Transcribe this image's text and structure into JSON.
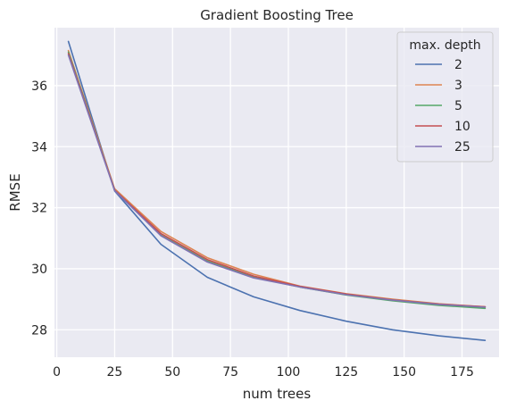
{
  "chart_data": {
    "type": "line",
    "title": "Gradient Boosting Tree",
    "xlabel": "num trees",
    "ylabel": "RMSE",
    "xlim": [
      -1,
      191
    ],
    "ylim": [
      27.1,
      37.9
    ],
    "xticks": [
      0,
      25,
      50,
      75,
      100,
      125,
      150,
      175
    ],
    "yticks": [
      28,
      30,
      32,
      34,
      36
    ],
    "grid": true,
    "legend": {
      "title": "max. depth",
      "location": "upper right"
    },
    "x": [
      5,
      25,
      45,
      65,
      85,
      105,
      125,
      145,
      165,
      185
    ],
    "series": [
      {
        "name": "2",
        "color": "#4c72b0",
        "values": [
          37.45,
          32.55,
          30.8,
          29.72,
          29.08,
          28.63,
          28.28,
          28.0,
          27.8,
          27.65
        ]
      },
      {
        "name": "3",
        "color": "#dd8452",
        "values": [
          37.15,
          32.62,
          31.22,
          30.36,
          29.82,
          29.43,
          29.18,
          29.0,
          28.85,
          28.75
        ]
      },
      {
        "name": "5",
        "color": "#55a868",
        "values": [
          37.1,
          32.58,
          31.1,
          30.25,
          29.72,
          29.4,
          29.14,
          28.95,
          28.8,
          28.7
        ]
      },
      {
        "name": "10",
        "color": "#c44e52",
        "values": [
          37.05,
          32.58,
          31.15,
          30.3,
          29.76,
          29.42,
          29.17,
          28.98,
          28.84,
          28.75
        ]
      },
      {
        "name": "25",
        "color": "#8172b3",
        "values": [
          37.0,
          32.56,
          31.08,
          30.22,
          29.7,
          29.4,
          29.15,
          28.97,
          28.83,
          28.74
        ]
      }
    ]
  }
}
